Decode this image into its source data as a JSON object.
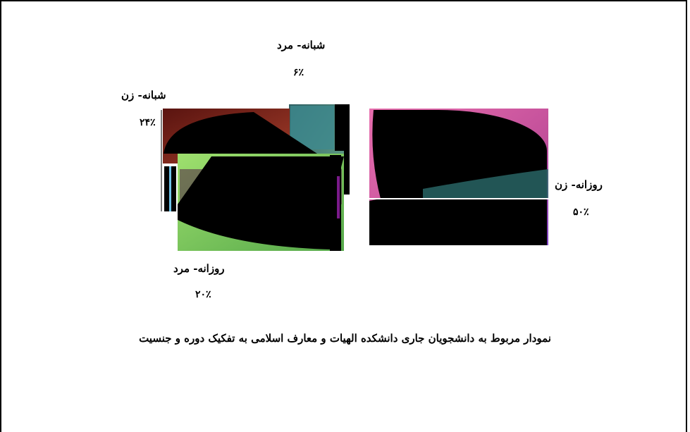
{
  "chart_data": {
    "type": "pie",
    "title": "نمودار مربوط به دانشجویان جاری دانشکده الهیات و معارف اسلامی به تفکیک دوره و جنسیت",
    "slices": [
      {
        "label": "روزانه- زن",
        "value": 50,
        "value_label": "۵۰٪",
        "color": "#d4589f"
      },
      {
        "label": "شبانه- مرد",
        "value": 6,
        "value_label": "۶٪",
        "color": "#4c8a7a"
      },
      {
        "label": "شبانه- زن",
        "value": 24,
        "value_label": "۲۴٪",
        "color": "#7a2418"
      },
      {
        "label": "روزانه- مرد",
        "value": 20,
        "value_label": "۲۰٪",
        "color": "#7fcf63"
      }
    ]
  }
}
